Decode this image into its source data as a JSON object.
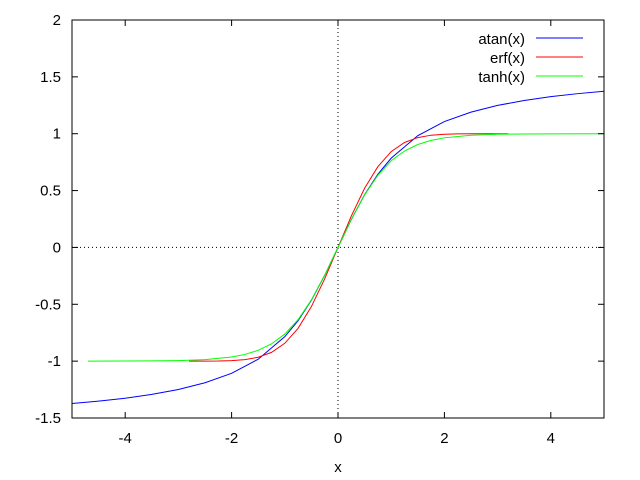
{
  "chart_data": {
    "type": "line",
    "title": "",
    "xlabel": "x",
    "ylabel": "",
    "xlim": [
      -5,
      5
    ],
    "ylim": [
      -1.5,
      2
    ],
    "xticks": [
      -4,
      -2,
      0,
      2,
      4
    ],
    "xtick_labels": [
      "-4",
      "-2",
      "0",
      "2",
      "4"
    ],
    "yticks": [
      -1.5,
      -1,
      -0.5,
      0,
      0.5,
      1,
      1.5,
      2
    ],
    "ytick_labels": [
      "-1.5",
      "-1",
      "-0.5",
      "0",
      "0.5",
      "1",
      "1.5",
      "2"
    ],
    "grid": false,
    "zero_axes": "dotted",
    "legend_position": "top-right",
    "series": [
      {
        "name": "atan(x)",
        "color": "#0000ff",
        "x": [
          -5,
          -4.5,
          -4,
          -3.5,
          -3,
          -2.5,
          -2,
          -1.5,
          -1,
          -0.75,
          -0.5,
          -0.25,
          0,
          0.25,
          0.5,
          0.75,
          1,
          1.5,
          2,
          2.5,
          3,
          3.5,
          4,
          4.5,
          5
        ],
        "y": [
          -1.373,
          -1.352,
          -1.326,
          -1.292,
          -1.249,
          -1.19,
          -1.107,
          -0.983,
          -0.785,
          -0.644,
          -0.464,
          -0.245,
          0,
          0.245,
          0.464,
          0.644,
          0.785,
          0.983,
          1.107,
          1.19,
          1.249,
          1.292,
          1.326,
          1.352,
          1.373
        ]
      },
      {
        "name": "erf(x)",
        "color": "#ff0000",
        "x": [
          -2.8,
          -2.5,
          -2.25,
          -2,
          -1.75,
          -1.5,
          -1.25,
          -1,
          -0.75,
          -0.5,
          -0.25,
          0,
          0.25,
          0.5,
          0.75,
          1,
          1.25,
          1.5,
          1.75,
          2,
          2.25,
          2.5,
          3.2
        ],
        "y": [
          -1.0,
          -1.0,
          -0.999,
          -0.995,
          -0.987,
          -0.966,
          -0.923,
          -0.843,
          -0.711,
          -0.52,
          -0.276,
          0,
          0.276,
          0.52,
          0.711,
          0.843,
          0.923,
          0.966,
          0.987,
          0.995,
          0.999,
          1.0,
          1.0
        ]
      },
      {
        "name": "tanh(x)",
        "color": "#00ff00",
        "x": [
          -4.7,
          -4,
          -3.5,
          -3,
          -2.5,
          -2,
          -1.75,
          -1.5,
          -1.25,
          -1,
          -0.75,
          -0.5,
          -0.25,
          0,
          0.25,
          0.5,
          0.75,
          1,
          1.25,
          1.5,
          1.75,
          2,
          2.5,
          3,
          3.5,
          4,
          5
        ],
        "y": [
          -1.0,
          -0.999,
          -0.998,
          -0.995,
          -0.987,
          -0.964,
          -0.941,
          -0.905,
          -0.848,
          -0.762,
          -0.635,
          -0.462,
          -0.245,
          0,
          0.245,
          0.462,
          0.635,
          0.762,
          0.848,
          0.905,
          0.941,
          0.964,
          0.987,
          0.995,
          0.998,
          0.999,
          1.0
        ]
      }
    ]
  }
}
